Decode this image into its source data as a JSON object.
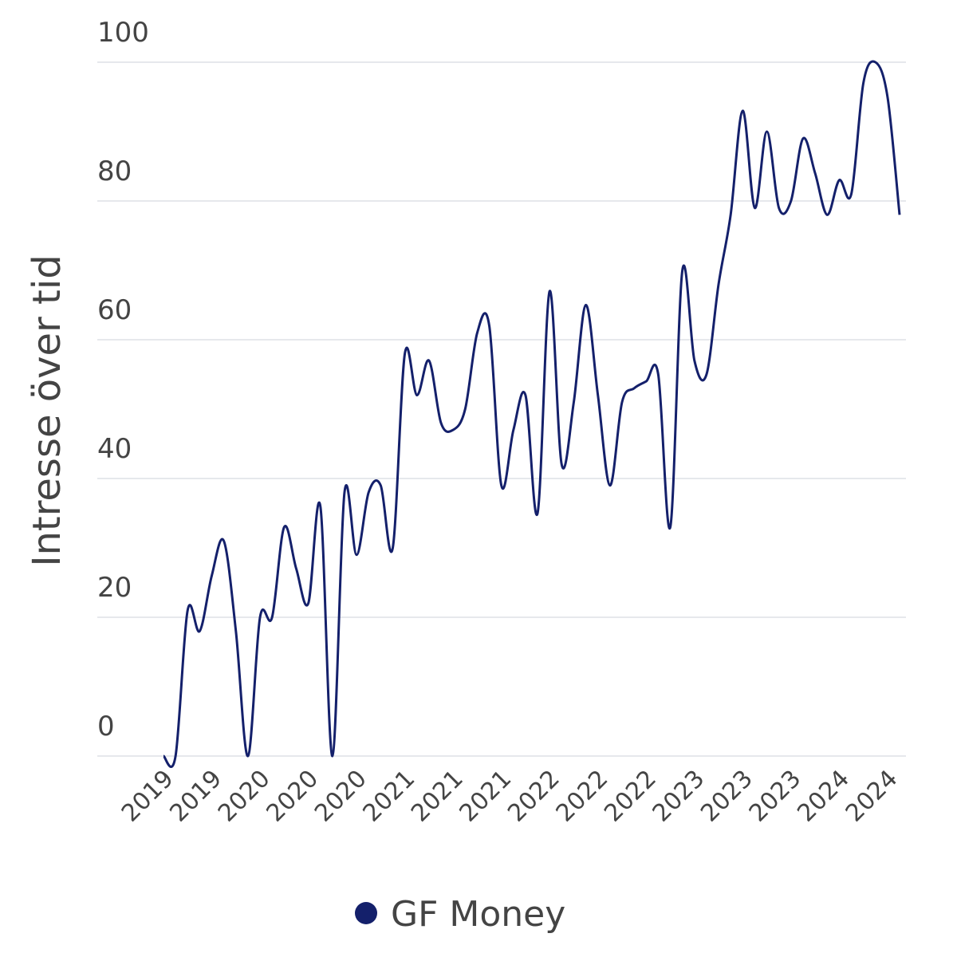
{
  "chart_data": {
    "type": "line",
    "y_label": "Intresse över tid",
    "categories": [
      "2019",
      null,
      null,
      null,
      "2019",
      null,
      null,
      null,
      "2020",
      null,
      null,
      null,
      "2020",
      null,
      null,
      null,
      "2020",
      null,
      null,
      null,
      "2021",
      null,
      null,
      null,
      "2021",
      null,
      null,
      null,
      "2021",
      null,
      null,
      null,
      "2022",
      null,
      null,
      null,
      "2022",
      null,
      null,
      null,
      "2022",
      null,
      null,
      null,
      "2023",
      null,
      null,
      null,
      "2023",
      null,
      null,
      null,
      "2023",
      null,
      null,
      null,
      "2024",
      null,
      null,
      null,
      "2024",
      null
    ],
    "series": [
      {
        "name": "GF Money",
        "color": "#14206b",
        "values": [
          0,
          0,
          21,
          18,
          26,
          31,
          18,
          0,
          20,
          20,
          33,
          27,
          22,
          36,
          0,
          38,
          29,
          38,
          39,
          30,
          58,
          52,
          57,
          48,
          47,
          50,
          61,
          62,
          39,
          47,
          52,
          35,
          67,
          42,
          51,
          65,
          52,
          39,
          51,
          53,
          54,
          55,
          33,
          70,
          57,
          55,
          68,
          78,
          93,
          79,
          90,
          79,
          80,
          89,
          84,
          78,
          83,
          81,
          97,
          100,
          95,
          78
        ]
      }
    ],
    "ylim": [
      0,
      100
    ],
    "yticks": [
      0,
      20,
      40,
      60,
      80,
      100
    ],
    "grid": true,
    "legend": "bottom"
  }
}
